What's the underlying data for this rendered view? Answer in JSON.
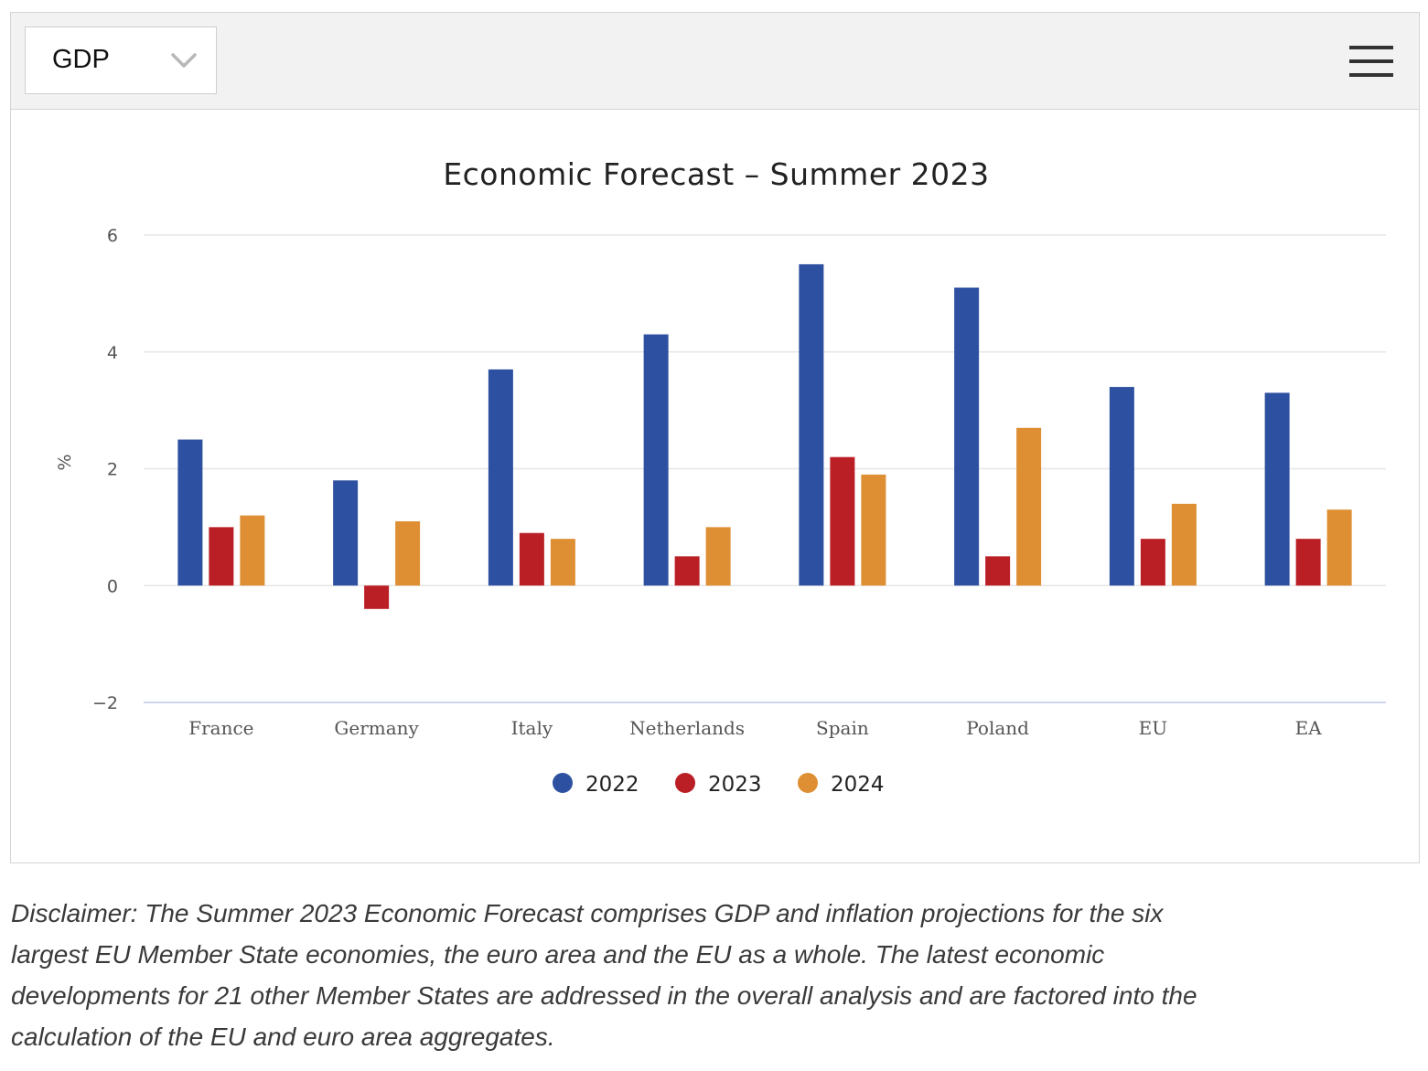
{
  "selector": {
    "value": "GDP"
  },
  "menu": {
    "icon": "hamburger-menu-icon"
  },
  "colors": {
    "2022": "#2e50a0",
    "2023": "#bb1f26",
    "2024": "#de8f33",
    "grid": "#e6e6e6",
    "toolbar_bg": "#f2f2f2"
  },
  "chart_data": {
    "type": "bar",
    "title": "Economic Forecast – Summer 2023",
    "xlabel": "",
    "ylabel": "%",
    "ylim": [
      -2,
      6
    ],
    "yticks": [
      6,
      4,
      2,
      0,
      -2
    ],
    "ytick_labels": [
      "6",
      "4",
      "2",
      "0",
      "−2"
    ],
    "grid": true,
    "legend_position": "bottom-center",
    "categories": [
      "France",
      "Germany",
      "Italy",
      "Netherlands",
      "Spain",
      "Poland",
      "EU",
      "EA"
    ],
    "series": [
      {
        "name": "2022",
        "color": "#2e50a0",
        "values": [
          2.5,
          1.8,
          3.7,
          4.3,
          5.5,
          5.1,
          3.4,
          3.3
        ]
      },
      {
        "name": "2023",
        "color": "#bb1f26",
        "values": [
          1.0,
          -0.4,
          0.9,
          0.5,
          2.2,
          0.5,
          0.8,
          0.8
        ]
      },
      {
        "name": "2024",
        "color": "#de8f33",
        "values": [
          1.2,
          1.1,
          0.8,
          1.0,
          1.9,
          2.7,
          1.4,
          1.3
        ]
      }
    ]
  },
  "disclaimer": "Disclaimer: The Summer 2023 Economic Forecast comprises GDP and inflation projections for the six largest EU Member State economies, the euro area and the EU as a whole. The latest economic developments for 21 other Member States are addressed in the overall analysis and are factored into the calculation of the EU and euro area aggregates."
}
